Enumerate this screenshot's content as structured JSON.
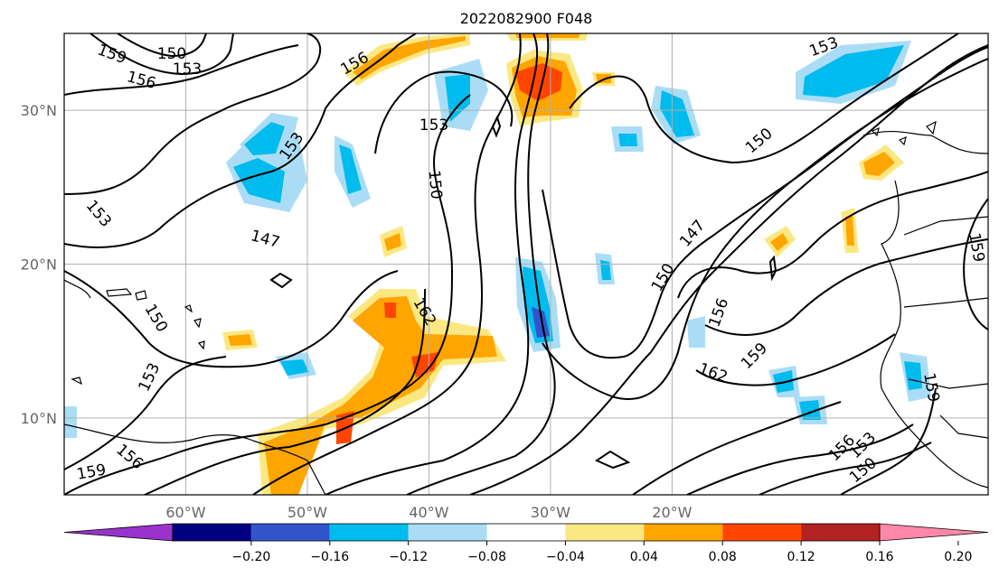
{
  "title": "2022082900 F048",
  "map": {
    "lon_range": [
      -70,
      6
    ],
    "lat_range": [
      5,
      35
    ],
    "grid": true,
    "lon_ticks": [
      {
        "value": -60,
        "label": "60°W"
      },
      {
        "value": -50,
        "label": "50°W"
      },
      {
        "value": -40,
        "label": "40°W"
      },
      {
        "value": -30,
        "label": "30°W"
      },
      {
        "value": -20,
        "label": "20°W"
      }
    ],
    "lat_ticks": [
      {
        "value": 30,
        "label": "30°N"
      },
      {
        "value": 20,
        "label": "20°N"
      },
      {
        "value": 10,
        "label": "10°N"
      }
    ],
    "contour_labels": [
      "159",
      "150",
      "153",
      "156",
      "156",
      "153",
      "153",
      "147",
      "150",
      "153",
      "153",
      "156",
      "159",
      "150",
      "162",
      "150",
      "147",
      "150",
      "156",
      "162",
      "159",
      "159",
      "156",
      "153",
      "150",
      "153",
      "159"
    ]
  },
  "colorbar": {
    "levels": [
      -0.24,
      -0.2,
      -0.16,
      -0.12,
      -0.08,
      -0.04,
      0.04,
      0.08,
      0.12,
      0.16,
      0.2,
      0.24
    ],
    "colors": [
      "#9933cc",
      "#000080",
      "#3355cc",
      "#00bbee",
      "#aaddf5",
      "#ffffff",
      "#fce883",
      "#ffa500",
      "#ff4500",
      "#b22222",
      "#ff88aa"
    ],
    "tick_labels": [
      "−0.20",
      "−0.16",
      "−0.12",
      "−0.08",
      "−0.04",
      "0.04",
      "0.08",
      "0.12",
      "0.16",
      "0.20"
    ]
  },
  "colors": {
    "contour": "#000000",
    "grid": "#b0b0b0",
    "coast": "#000000"
  }
}
